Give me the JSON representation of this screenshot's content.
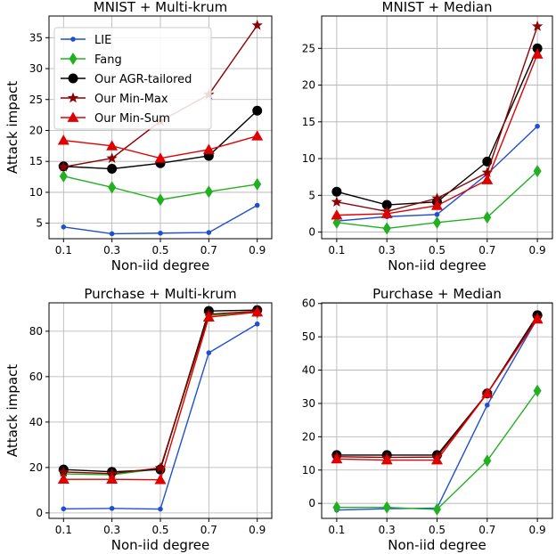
{
  "chart_data": [
    {
      "type": "line",
      "title": "MNIST + Multi-krum",
      "xlabel": "Non-iid degree",
      "ylabel": "Attack impact",
      "x": [
        0.1,
        0.3,
        0.5,
        0.7,
        0.9
      ],
      "xticks": [
        "0.1",
        "0.3",
        "0.5",
        "0.7",
        "0.9"
      ],
      "ylim": [
        2.5,
        38.5
      ],
      "yticks": [
        5,
        10,
        15,
        20,
        25,
        30,
        35
      ],
      "grid": true,
      "legend": "top-left",
      "series": [
        {
          "name": "LIE",
          "values": [
            4.4,
            3.3,
            3.4,
            3.5,
            7.9
          ]
        },
        {
          "name": "Fang",
          "values": [
            12.6,
            10.8,
            8.8,
            10.1,
            11.3
          ]
        },
        {
          "name": "Our AGR-tailored",
          "values": [
            14.2,
            13.8,
            14.7,
            15.9,
            23.2
          ]
        },
        {
          "name": "Our Min-Max",
          "values": [
            14.1,
            15.5,
            21.5,
            25.8,
            37.0
          ]
        },
        {
          "name": "Our Min-Sum",
          "values": [
            18.4,
            17.5,
            15.5,
            16.9,
            19.1
          ]
        }
      ]
    },
    {
      "type": "line",
      "title": "MNIST + Median",
      "xlabel": "Non-iid degree",
      "ylabel": "",
      "x": [
        0.1,
        0.3,
        0.5,
        0.7,
        0.9
      ],
      "xticks": [
        "0.1",
        "0.3",
        "0.5",
        "0.7",
        "0.9"
      ],
      "ylim": [
        -0.9,
        29.4
      ],
      "yticks": [
        0,
        5,
        10,
        15,
        20,
        25
      ],
      "grid": true,
      "series": [
        {
          "name": "LIE",
          "values": [
            1.5,
            2.1,
            2.4,
            7.9,
            14.4
          ]
        },
        {
          "name": "Fang",
          "values": [
            1.3,
            0.5,
            1.3,
            2.0,
            8.3
          ]
        },
        {
          "name": "Our AGR-tailored",
          "values": [
            5.5,
            3.7,
            4.1,
            9.6,
            25.0
          ]
        },
        {
          "name": "Our Min-Max",
          "values": [
            4.1,
            2.8,
            4.6,
            8.1,
            28.0
          ]
        },
        {
          "name": "Our Min-Sum",
          "values": [
            2.3,
            2.5,
            3.6,
            7.1,
            24.2
          ]
        }
      ]
    },
    {
      "type": "line",
      "title": "Purchase + Multi-krum",
      "xlabel": "Non-iid degree",
      "ylabel": "Attack impact",
      "x": [
        0.1,
        0.3,
        0.5,
        0.7,
        0.9
      ],
      "xticks": [
        "0.1",
        "0.3",
        "0.5",
        "0.7",
        "0.9"
      ],
      "ylim": [
        -2.4,
        92.5
      ],
      "yticks": [
        0,
        20,
        40,
        60,
        80
      ],
      "grid": true,
      "series": [
        {
          "name": "LIE",
          "values": [
            1.8,
            2.0,
            1.7,
            70.5,
            83.2
          ]
        },
        {
          "name": "Fang",
          "values": [
            17.2,
            16.8,
            19.5,
            87.0,
            88.3
          ]
        },
        {
          "name": "Our AGR-tailored",
          "values": [
            19.1,
            18.1,
            19.1,
            88.9,
            89.3
          ]
        },
        {
          "name": "Our Min-Max",
          "values": [
            18.0,
            17.3,
            19.8,
            87.5,
            88.8
          ]
        },
        {
          "name": "Our Min-Sum",
          "values": [
            14.8,
            14.8,
            14.6,
            86.2,
            88.4
          ]
        }
      ]
    },
    {
      "type": "line",
      "title": "Purchase + Median",
      "xlabel": "Non-iid degree",
      "ylabel": "",
      "x": [
        0.1,
        0.3,
        0.5,
        0.7,
        0.9
      ],
      "xticks": [
        "0.1",
        "0.3",
        "0.5",
        "0.7",
        "0.9"
      ],
      "ylim": [
        -4.5,
        60.2
      ],
      "yticks": [
        0,
        10,
        20,
        30,
        40,
        50,
        60
      ],
      "grid": true,
      "series": [
        {
          "name": "LIE",
          "values": [
            -2.0,
            -1.6,
            -1.4,
            29.5,
            55.5
          ]
        },
        {
          "name": "Fang",
          "values": [
            -1.2,
            -1.2,
            -1.8,
            12.8,
            33.8
          ]
        },
        {
          "name": "Our AGR-tailored",
          "values": [
            14.5,
            14.5,
            14.5,
            33.0,
            56.5
          ]
        },
        {
          "name": "Our Min-Max",
          "values": [
            14.0,
            13.8,
            13.9,
            33.0,
            55.8
          ]
        },
        {
          "name": "Our Min-Sum",
          "values": [
            13.3,
            13.0,
            13.0,
            33.0,
            55.3
          ]
        }
      ]
    }
  ],
  "styles": {
    "series_colors": [
      "#1f4fd1",
      "#22b022",
      "#000000",
      "#8b0000",
      "#e00000"
    ],
    "series_markers": [
      "dot",
      "diamond",
      "circle",
      "star",
      "triangle"
    ]
  }
}
